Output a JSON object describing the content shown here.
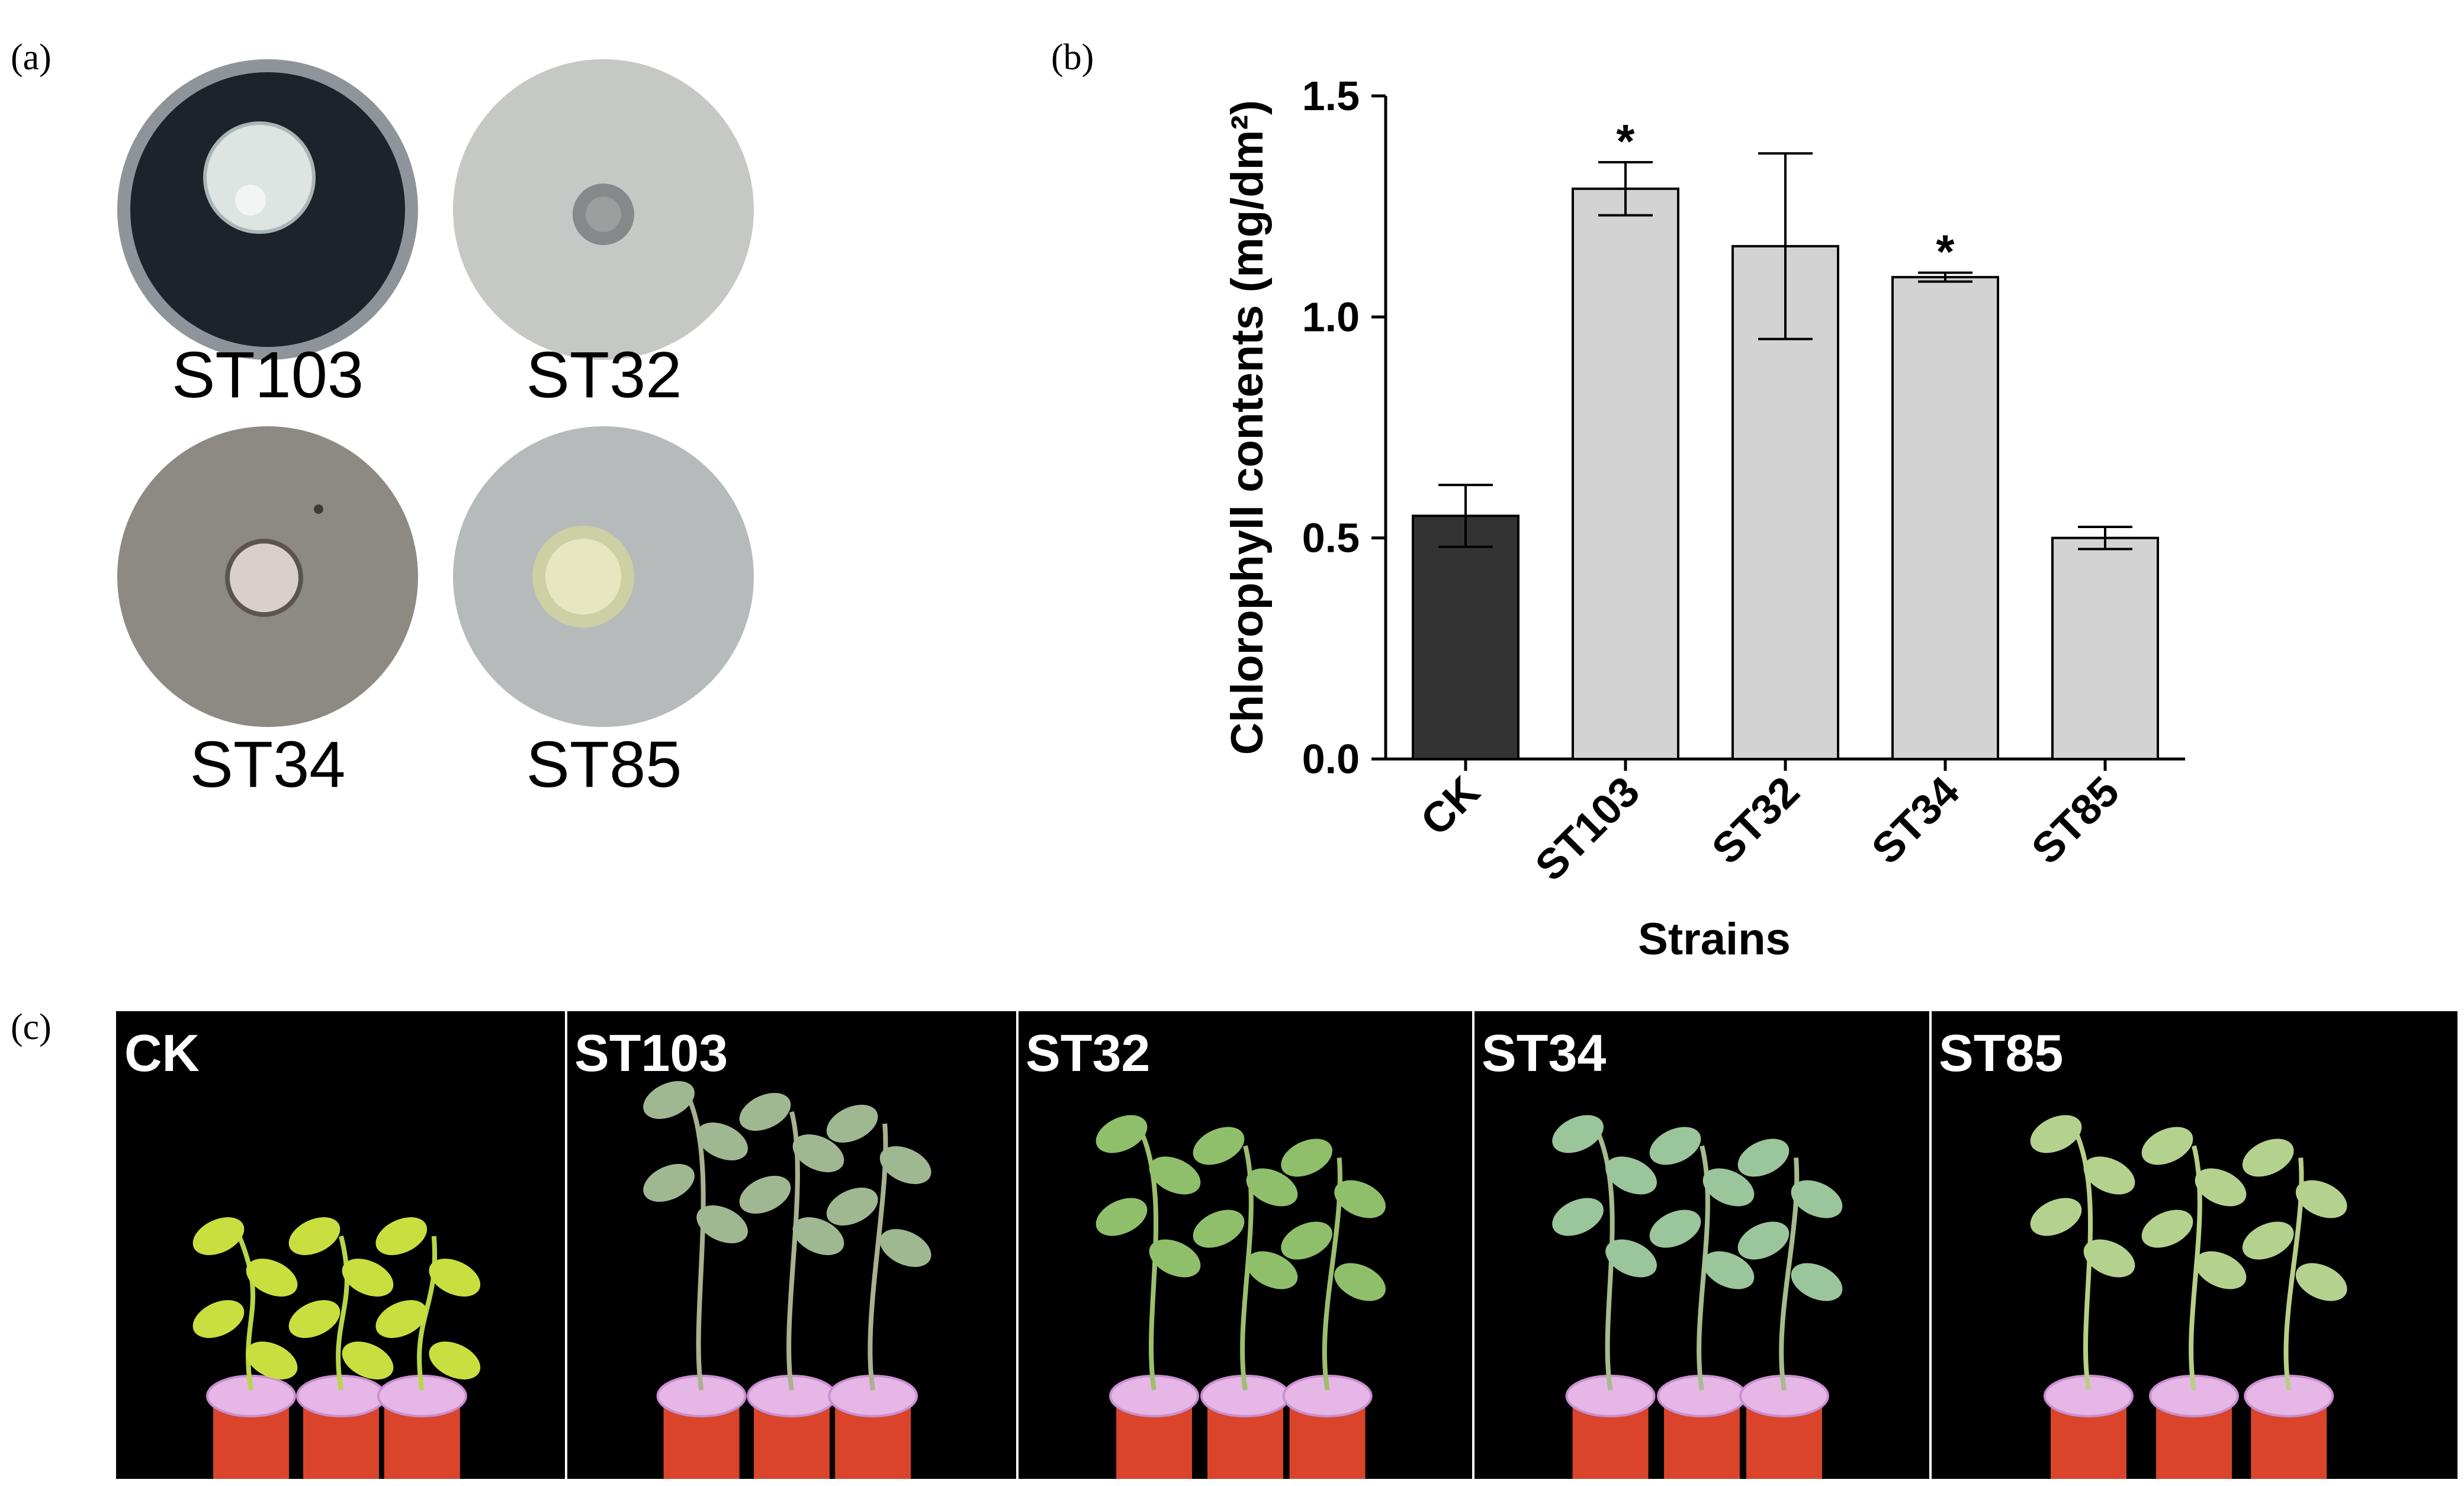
{
  "panels": {
    "a": "(a)",
    "b": "(b)",
    "c": "(c)"
  },
  "dishes": [
    {
      "label": "ST103",
      "agar": "#1c232b",
      "colony": "#dde4e2",
      "halo": "#8d9ea3"
    },
    {
      "label": "ST32",
      "agar": "#c6c8c5",
      "colony": "#6f7474",
      "halo": "#9b9e9c"
    },
    {
      "label": "ST34",
      "agar": "#8c8a82",
      "colony": "#d9d0cd",
      "halo": "#5b5450"
    },
    {
      "label": "ST85",
      "agar": "#b6babb",
      "colony": "#e6e6c1",
      "halo": "#cdd0a4"
    }
  ],
  "chart_data": {
    "type": "bar",
    "ylabel": "Chlorophyll contents (mg/dm²)",
    "xlabel": "Strains",
    "categories": [
      "CK",
      "ST103",
      "ST32",
      "ST34",
      "ST85"
    ],
    "values": [
      0.55,
      1.29,
      1.16,
      1.09,
      0.5
    ],
    "errors": [
      0.07,
      0.06,
      0.21,
      0.01,
      0.025
    ],
    "significance": [
      "",
      "*",
      "",
      "*",
      ""
    ],
    "bar_colors": [
      "#333333",
      "#d3d3d3",
      "#d3d3d3",
      "#d3d3d3",
      "#d3d3d3"
    ],
    "ylim": [
      0,
      1.5
    ],
    "yticks": [
      "0.0",
      "0.5",
      "1.0",
      "1.5"
    ],
    "grid": false
  },
  "photos": [
    {
      "label": "CK"
    },
    {
      "label": "ST103"
    },
    {
      "label": "ST32"
    },
    {
      "label": "ST34"
    },
    {
      "label": "ST85"
    }
  ]
}
